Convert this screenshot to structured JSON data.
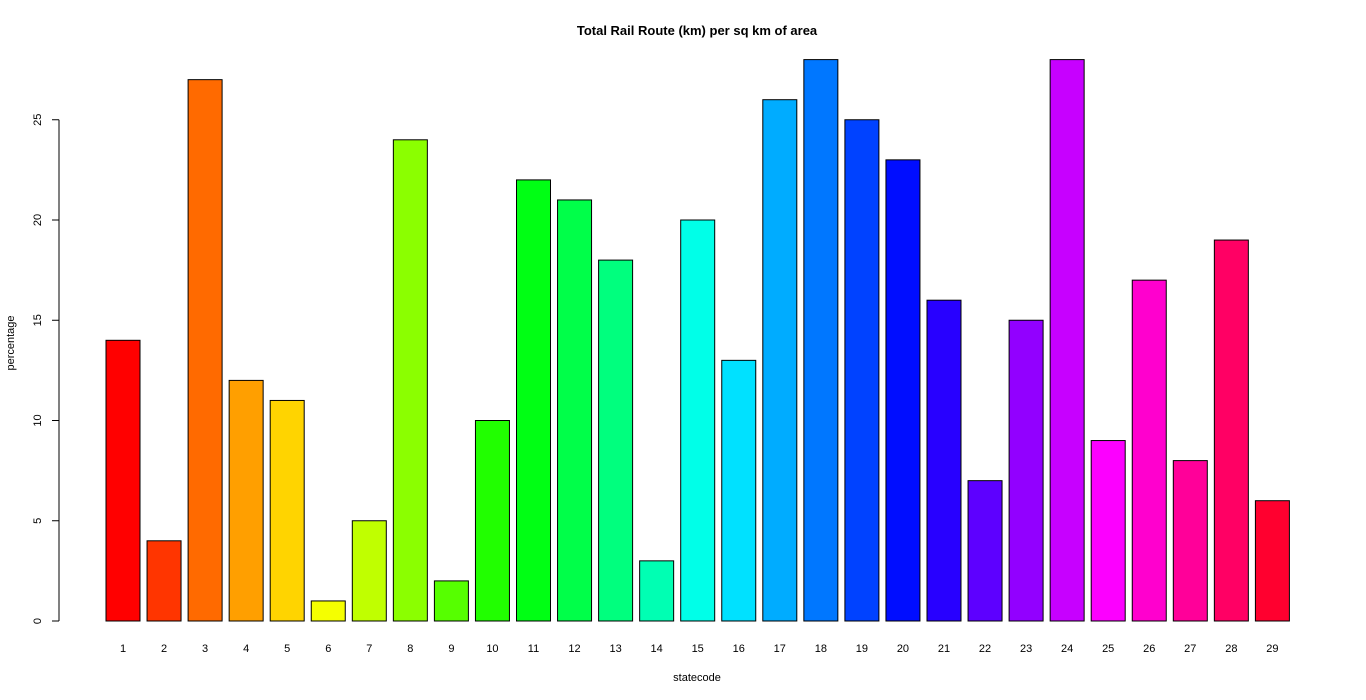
{
  "chart_data": {
    "type": "bar",
    "title": "Total Rail Route (km) per sq km of area",
    "xlabel": "statecode",
    "ylabel": "percentage",
    "categories": [
      "1",
      "2",
      "3",
      "4",
      "5",
      "6",
      "7",
      "8",
      "9",
      "10",
      "11",
      "12",
      "13",
      "14",
      "15",
      "16",
      "17",
      "18",
      "19",
      "20",
      "21",
      "22",
      "23",
      "24",
      "25",
      "26",
      "27",
      "28",
      "29"
    ],
    "values": [
      14,
      4,
      27,
      12,
      11,
      1,
      5,
      24,
      2,
      10,
      22,
      21,
      18,
      3,
      20,
      13,
      26,
      28,
      25,
      23,
      16,
      7,
      15,
      28,
      9,
      17,
      8,
      19,
      6
    ],
    "colors": [
      "#FF0000",
      "#FF3500",
      "#FF6A00",
      "#FF9F00",
      "#FFD400",
      "#F5FF00",
      "#C0FF00",
      "#8BFF00",
      "#56FF00",
      "#21FF00",
      "#00FF14",
      "#00FF49",
      "#00FF7E",
      "#00FFB3",
      "#00FFE8",
      "#00E1FF",
      "#00ACFF",
      "#0077FF",
      "#0042FF",
      "#000DFF",
      "#2800FF",
      "#5D00FF",
      "#9200FF",
      "#C700FF",
      "#FC00FF",
      "#FF00CE",
      "#FF0099",
      "#FF0064",
      "#FF002F"
    ],
    "yticks": [
      0,
      5,
      10,
      15,
      20,
      25
    ],
    "ylim": [
      0,
      28
    ],
    "grid": false,
    "legend": "none"
  }
}
